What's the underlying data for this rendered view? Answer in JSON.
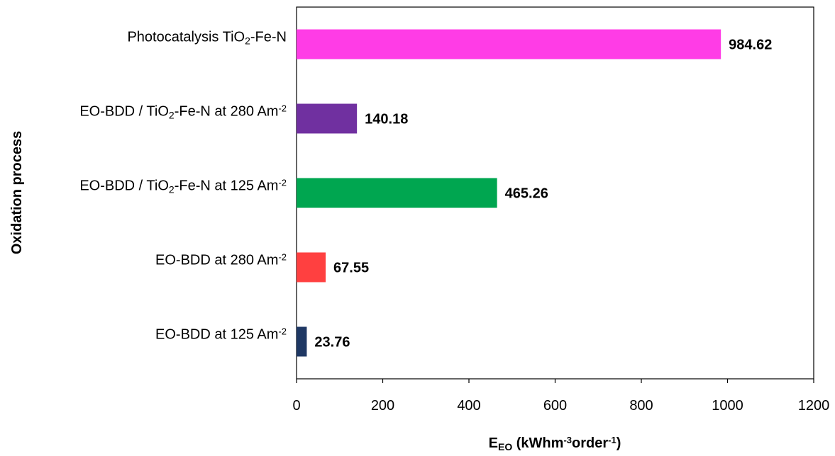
{
  "chart_data": {
    "type": "bar",
    "orientation": "horizontal",
    "categories": [
      [
        {
          "t": "EO-BDD at 125   Am"
        },
        {
          "t": "-2",
          "s": "sup"
        }
      ],
      [
        {
          "t": "EO-BDD at 280   Am"
        },
        {
          "t": "-2",
          "s": "sup"
        }
      ],
      [
        {
          "t": "EO-BDD / TiO"
        },
        {
          "t": "2",
          "s": "sub"
        },
        {
          "t": "-Fe-N at 125   Am"
        },
        {
          "t": "-2",
          "s": "sup"
        }
      ],
      [
        {
          "t": "EO-BDD / TiO"
        },
        {
          "t": "2",
          "s": "sub"
        },
        {
          "t": "-Fe-N at 280   Am"
        },
        {
          "t": "-2",
          "s": "sup"
        }
      ],
      [
        {
          "t": "Photocatalysis TiO"
        },
        {
          "t": "2",
          "s": "sub"
        },
        {
          "t": "-Fe-N"
        }
      ]
    ],
    "values": [
      23.76,
      67.55,
      465.26,
      140.18,
      984.62
    ],
    "data_labels": [
      "23.76",
      "67.55",
      "465.26",
      "140.18",
      "984.62"
    ],
    "colors": [
      "#1f3864",
      "#ff4040",
      "#00a650",
      "#7030a0",
      "#ff3ce6"
    ],
    "xlim": [
      0,
      1200
    ],
    "xticks": [
      0,
      200,
      400,
      600,
      800,
      1000,
      1200
    ],
    "xlabel": [
      {
        "t": "E"
      },
      {
        "t": "EO",
        "s": "sub"
      },
      {
        "t": " (kWhm"
      },
      {
        "t": "-3",
        "s": "sup"
      },
      {
        "t": "order"
      },
      {
        "t": "-1",
        "s": "sup"
      },
      {
        "t": ")"
      }
    ],
    "ylabel": "Oxidation process",
    "grid": false,
    "legend": "none"
  }
}
